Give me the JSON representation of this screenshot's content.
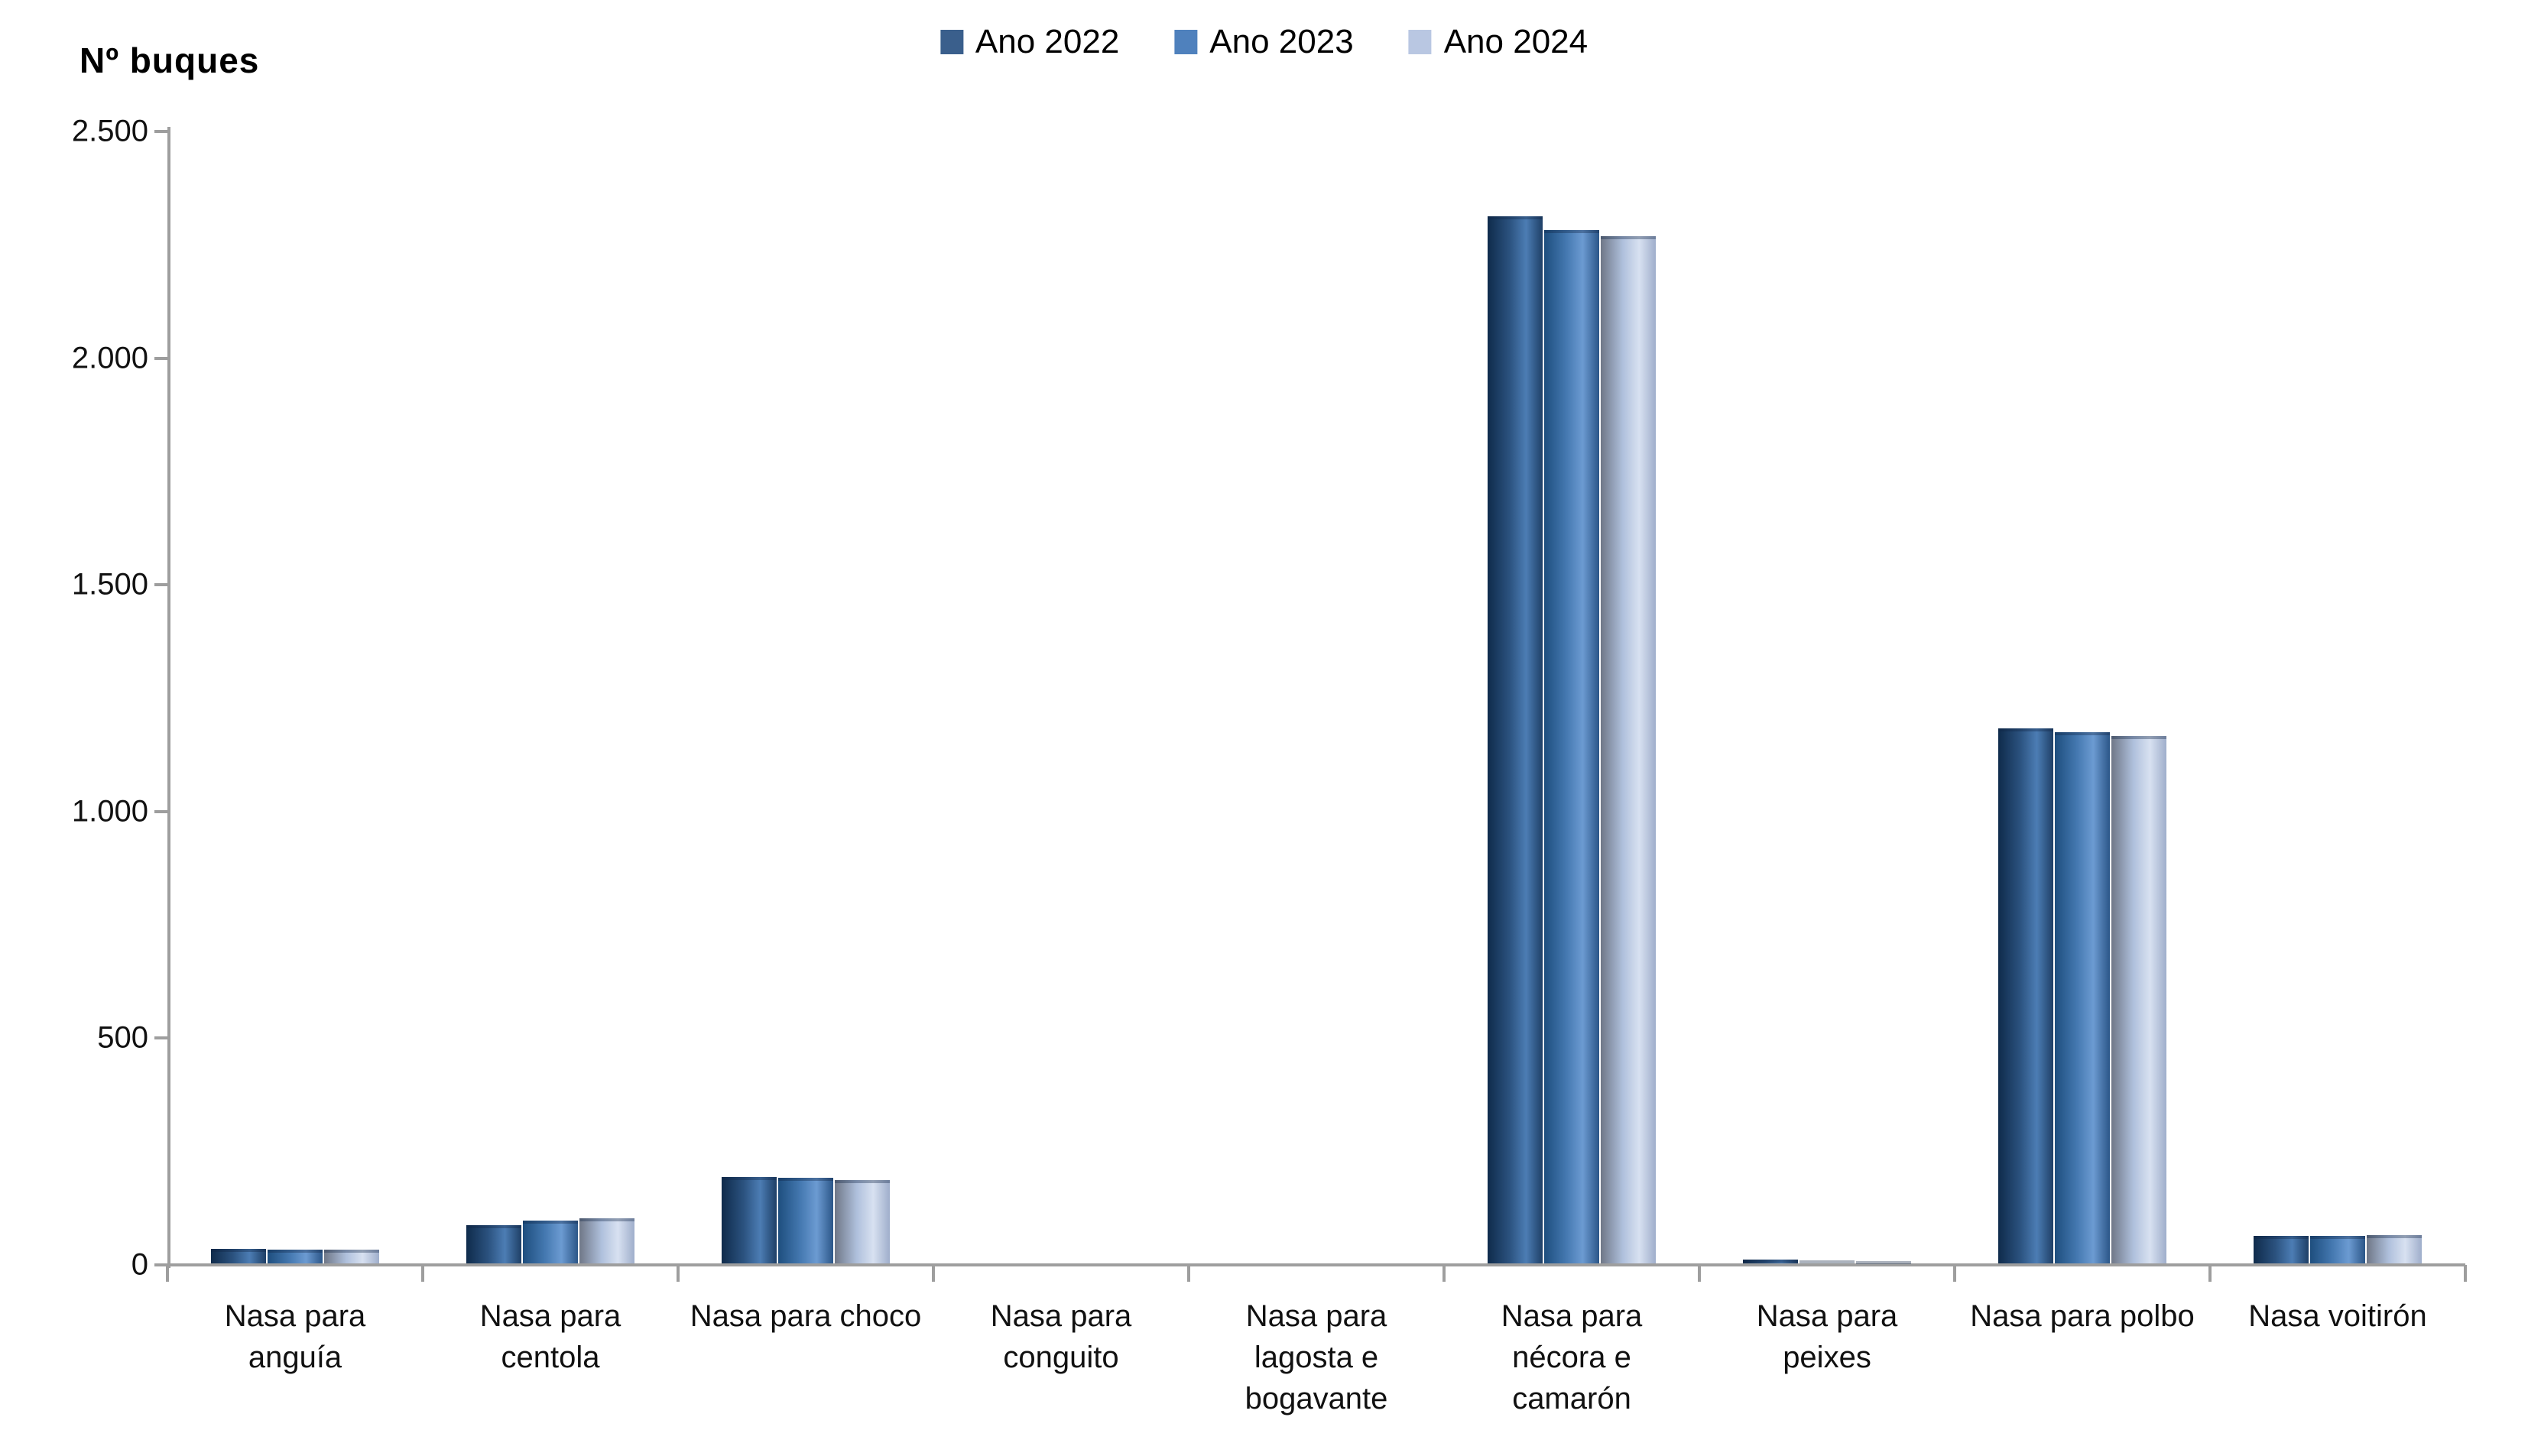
{
  "chart_data": {
    "type": "bar",
    "title": "",
    "ylabel": "Nº  buques",
    "xlabel": "",
    "ylim": [
      0,
      2500
    ],
    "grid": false,
    "legend_position": "top-center",
    "yticks": [
      {
        "value": 2500,
        "label": "2.500"
      },
      {
        "value": 2000,
        "label": "2.000"
      },
      {
        "value": 1500,
        "label": "1.500"
      },
      {
        "value": 1000,
        "label": "1.000"
      },
      {
        "value": 500,
        "label": "500"
      },
      {
        "value": 0,
        "label": "0"
      }
    ],
    "categories": [
      "Nasa para anguía",
      "Nasa para centola",
      "Nasa para choco",
      "Nasa para conguito",
      "Nasa para lagosta e bogavante",
      "Nasa para nécora e camarón",
      "Nasa para peixes",
      "Nasa para polbo",
      "Nasa voitirón"
    ],
    "series": [
      {
        "name": "Ano 2022",
        "values": [
          32,
          85,
          190,
          0,
          0,
          2310,
          8,
          1180,
          60
        ],
        "swatch_color": "#3a5f8c",
        "gradient": [
          "#0f2b4b",
          "#2b527f",
          "#4c7db4",
          "#1e3f66"
        ]
      },
      {
        "name": "Ano 2023",
        "values": [
          30,
          95,
          188,
          0,
          0,
          2280,
          7,
          1172,
          60
        ],
        "swatch_color": "#4f81bd",
        "gradient": [
          "#1e4e7e",
          "#4478b0",
          "#6c9bd2",
          "#2b5688"
        ]
      },
      {
        "name": "Ano 2024",
        "values": [
          31,
          100,
          183,
          0,
          0,
          2265,
          5,
          1164,
          63
        ],
        "swatch_color": "#b9c7e2",
        "gradient": [
          "#6f7787",
          "#afc0dc",
          "#d8e1f1",
          "#9faecb"
        ]
      }
    ]
  },
  "colors": {
    "axis": "#9e9e9e",
    "text": "#000000",
    "background": "#ffffff"
  }
}
